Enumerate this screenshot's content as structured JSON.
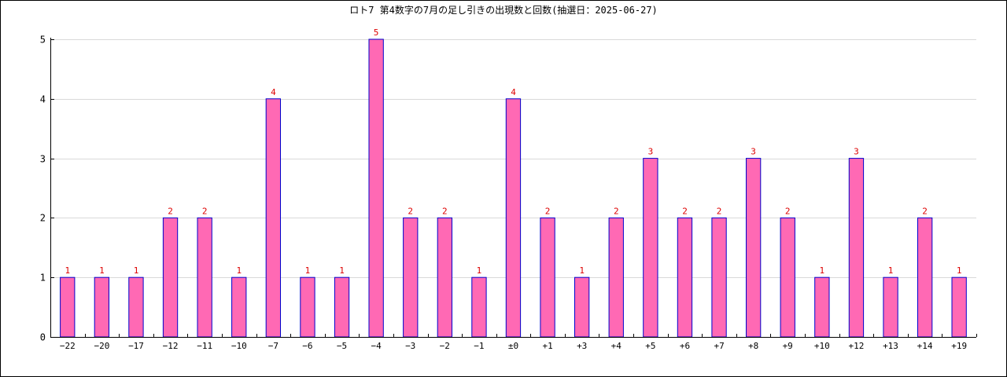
{
  "chart_data": {
    "type": "bar",
    "title": "ロト7 第4数字の7月の足し引きの出現数と回数(抽選日：2025-06-27)",
    "xlabel": "",
    "ylabel": "",
    "categories": [
      "−22",
      "−20",
      "−17",
      "−12",
      "−11",
      "−10",
      "−7",
      "−6",
      "−5",
      "−4",
      "−3",
      "−2",
      "−1",
      "±0",
      "+1",
      "+3",
      "+4",
      "+5",
      "+6",
      "+7",
      "+8",
      "+9",
      "+10",
      "+12",
      "+13",
      "+14",
      "+19"
    ],
    "values": [
      1,
      1,
      1,
      2,
      2,
      1,
      4,
      1,
      1,
      5,
      2,
      2,
      1,
      4,
      2,
      1,
      2,
      3,
      2,
      2,
      3,
      2,
      1,
      3,
      1,
      2,
      1
    ],
    "ylim": [
      0,
      5
    ],
    "yticks": [
      0,
      1,
      2,
      3,
      4,
      5
    ],
    "grid": true,
    "colors": {
      "bar_fill": "#ff69b4",
      "bar_stroke": "#0000cc",
      "label": "#dd0000",
      "grid": "#d9d9d9",
      "axis": "#000000"
    }
  }
}
